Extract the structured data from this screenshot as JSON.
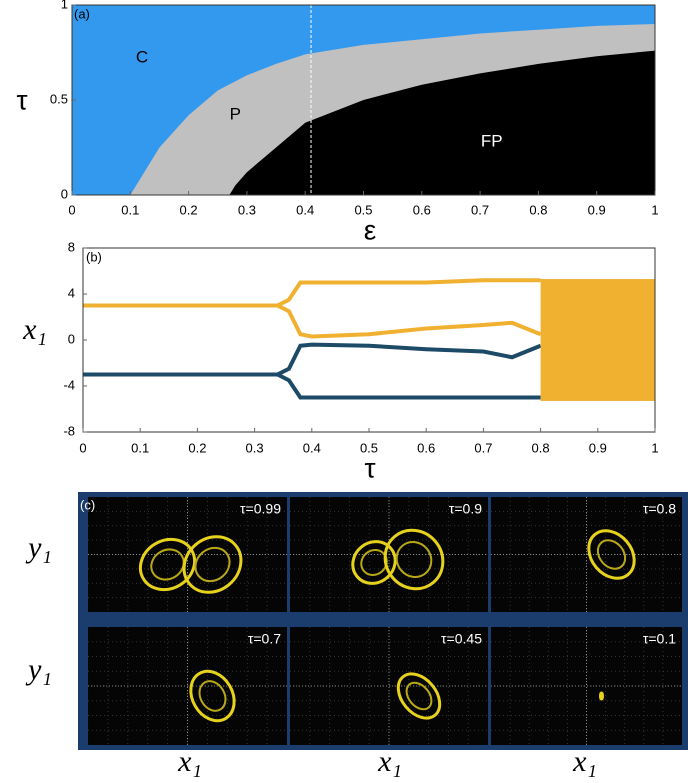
{
  "chart_data": [
    {
      "type": "region",
      "panel_label": "(a)",
      "xlabel": "ε",
      "ylabel": "τ",
      "xlim": [
        0,
        1
      ],
      "ylim": [
        0,
        1
      ],
      "xticks": [
        0,
        0.1,
        0.2,
        0.3,
        0.4,
        0.5,
        0.6,
        0.7,
        0.8,
        0.9,
        1
      ],
      "yticks": [
        0,
        0.5,
        1
      ],
      "regions": [
        {
          "label": "C",
          "color": "#3399ee"
        },
        {
          "label": "P",
          "color": "#c0c0c0",
          "x": [
            0.1,
            0.12,
            0.15,
            0.2,
            0.25,
            0.3,
            0.35,
            0.4,
            0.5,
            0.6,
            0.7,
            0.8,
            0.9,
            1
          ],
          "values": [
            0,
            0.1,
            0.25,
            0.42,
            0.55,
            0.63,
            0.69,
            0.74,
            0.79,
            0.82,
            0.85,
            0.87,
            0.89,
            0.9
          ]
        },
        {
          "label": "FP",
          "color": "#000000",
          "x": [
            0.27,
            0.28,
            0.3,
            0.35,
            0.4,
            0.5,
            0.6,
            0.7,
            0.8,
            0.9,
            1
          ],
          "values": [
            0,
            0.05,
            0.12,
            0.25,
            0.38,
            0.5,
            0.58,
            0.64,
            0.69,
            0.73,
            0.76
          ]
        }
      ],
      "dashed_line_x": 0.41
    },
    {
      "type": "bifurcation",
      "panel_label": "(b)",
      "xlabel": "τ",
      "ylabel": "x₁",
      "xlim": [
        0,
        1
      ],
      "ylim": [
        -8,
        8
      ],
      "xticks": [
        0,
        0.1,
        0.2,
        0.3,
        0.4,
        0.5,
        0.6,
        0.7,
        0.8,
        0.9,
        1
      ],
      "yticks": [
        -8,
        -4,
        0,
        4,
        8
      ],
      "x": [
        0,
        0.34,
        0.36,
        0.38,
        0.4,
        0.5,
        0.6,
        0.7,
        0.75,
        0.8
      ],
      "series": [
        {
          "color": "#f0b030",
          "values": [
            3,
            3,
            3.5,
            5,
            5,
            5,
            5,
            5.2,
            5.2,
            5.2
          ]
        },
        {
          "color": "#f0b030",
          "values": [
            3,
            3,
            2.5,
            0.5,
            0.3,
            0.5,
            1,
            1.3,
            1.5,
            0.5
          ]
        },
        {
          "color": "#1d4a66",
          "values": [
            -3,
            -3,
            -2.5,
            -0.5,
            -0.4,
            -0.5,
            -0.8,
            -1,
            -1.5,
            -0.5
          ]
        },
        {
          "color": "#1d4a66",
          "values": [
            -3,
            -3,
            -3.5,
            -5,
            -5,
            -5,
            -5,
            -5,
            -5,
            -5
          ]
        }
      ],
      "chaotic_band": {
        "color": "#f0b030",
        "x": [
          0.8,
          1
        ],
        "values": [
          -5.3,
          5.3
        ]
      }
    }
  ],
  "panel_c": {
    "panel_label": "(c)",
    "xlabel": "x₁",
    "ylabel": "y₁",
    "images": [
      "τ=0.99",
      "τ=0.9",
      "τ=0.8",
      "τ=0.7",
      "τ=0.45",
      "τ=0.1"
    ]
  }
}
